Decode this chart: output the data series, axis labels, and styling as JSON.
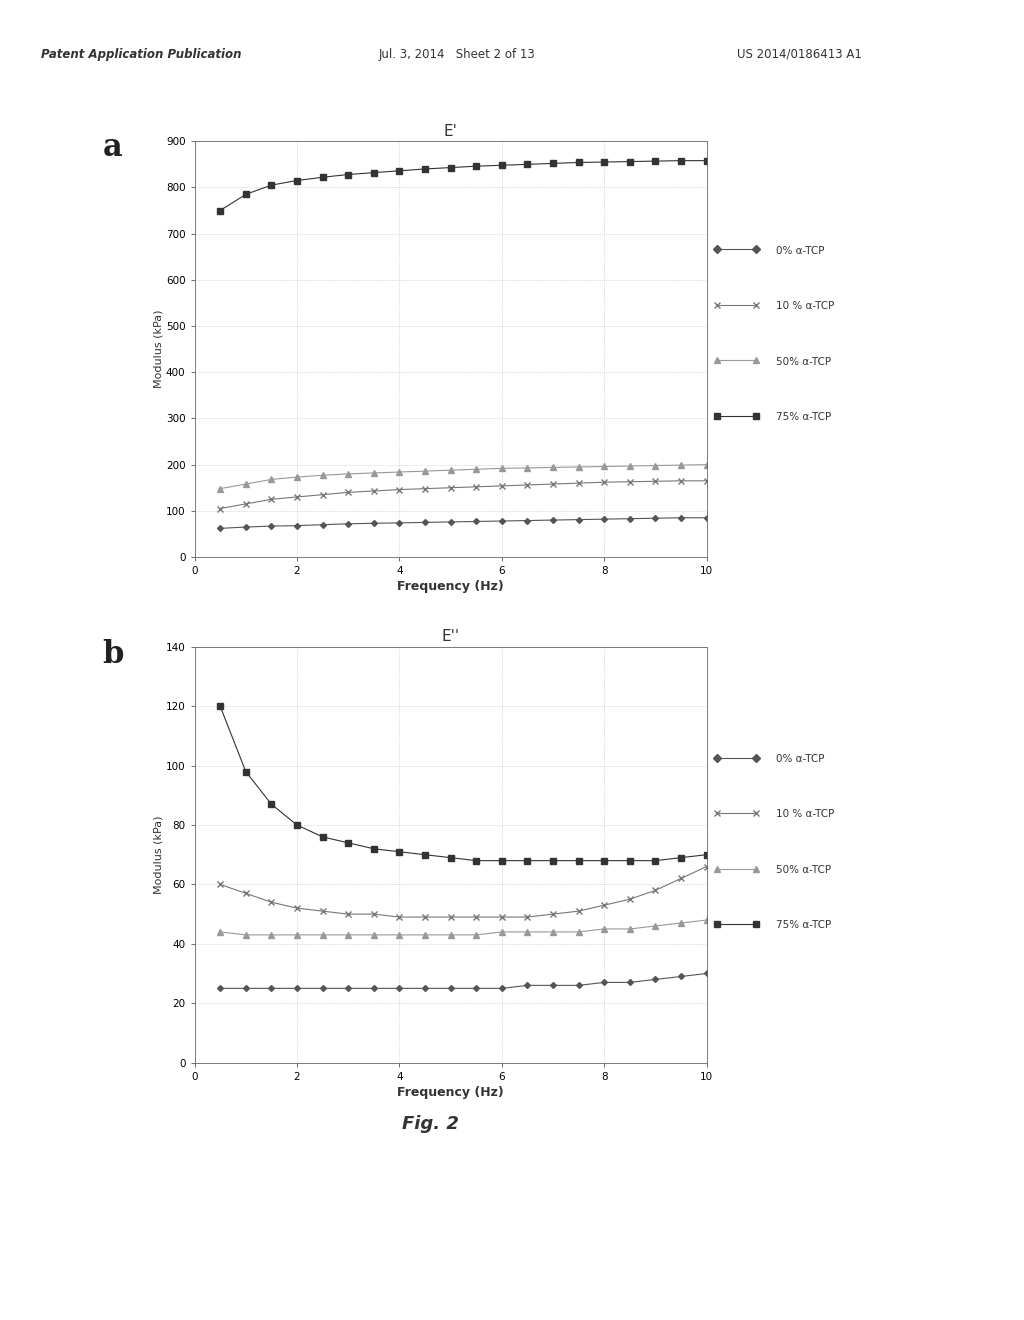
{
  "header_left": "Patent Application Publication",
  "header_mid": "Jul. 3, 2014   Sheet 2 of 13",
  "header_right": "US 2014/0186413 A1",
  "fig_label": "Fig. 2",
  "plot_a": {
    "label": "a",
    "title": "E'",
    "xlabel": "Frequency (Hz)",
    "ylabel": "Modulus (kPa)",
    "xlim": [
      0,
      10
    ],
    "ylim": [
      0,
      900
    ],
    "yticks": [
      0,
      100,
      200,
      300,
      400,
      500,
      600,
      700,
      800,
      900
    ],
    "xticks": [
      0,
      2,
      4,
      6,
      8,
      10
    ],
    "series": [
      {
        "label": "0% α-TCP",
        "x": [
          0.5,
          1,
          1.5,
          2,
          2.5,
          3,
          3.5,
          4,
          4.5,
          5,
          5.5,
          6,
          6.5,
          7,
          7.5,
          8,
          8.5,
          9,
          9.5,
          10
        ],
        "y": [
          62,
          65,
          67,
          68,
          70,
          72,
          73,
          74,
          75,
          76,
          77,
          78,
          79,
          80,
          81,
          82,
          83,
          84,
          85,
          85
        ]
      },
      {
        "label": "10 % α-TCP",
        "x": [
          0.5,
          1,
          1.5,
          2,
          2.5,
          3,
          3.5,
          4,
          4.5,
          5,
          5.5,
          6,
          6.5,
          7,
          7.5,
          8,
          8.5,
          9,
          9.5,
          10
        ],
        "y": [
          105,
          115,
          125,
          130,
          135,
          140,
          143,
          146,
          148,
          150,
          152,
          154,
          156,
          158,
          160,
          162,
          163,
          164,
          165,
          165
        ]
      },
      {
        "label": "50% α-TCP",
        "x": [
          0.5,
          1,
          1.5,
          2,
          2.5,
          3,
          3.5,
          4,
          4.5,
          5,
          5.5,
          6,
          6.5,
          7,
          7.5,
          8,
          8.5,
          9,
          9.5,
          10
        ],
        "y": [
          148,
          158,
          168,
          173,
          177,
          180,
          182,
          184,
          186,
          188,
          190,
          192,
          193,
          194,
          195,
          196,
          197,
          198,
          199,
          200
        ]
      },
      {
        "label": "75% α-TCP",
        "x": [
          0.5,
          1,
          1.5,
          2,
          2.5,
          3,
          3.5,
          4,
          4.5,
          5,
          5.5,
          6,
          6.5,
          7,
          7.5,
          8,
          8.5,
          9,
          9.5,
          10
        ],
        "y": [
          750,
          785,
          805,
          815,
          822,
          828,
          832,
          836,
          840,
          843,
          846,
          848,
          850,
          852,
          854,
          855,
          856,
          857,
          858,
          858
        ]
      }
    ]
  },
  "plot_b": {
    "label": "b",
    "title": "E''",
    "xlabel": "Frequency (Hz)",
    "ylabel": "Modulus (kPa)",
    "xlim": [
      0,
      10
    ],
    "ylim": [
      0,
      140
    ],
    "yticks": [
      0,
      20,
      40,
      60,
      80,
      100,
      120,
      140
    ],
    "xticks": [
      0,
      2,
      4,
      6,
      8,
      10
    ],
    "series": [
      {
        "label": "0% α-TCP",
        "x": [
          0.5,
          1,
          1.5,
          2,
          2.5,
          3,
          3.5,
          4,
          4.5,
          5,
          5.5,
          6,
          6.5,
          7,
          7.5,
          8,
          8.5,
          9,
          9.5,
          10
        ],
        "y": [
          25,
          25,
          25,
          25,
          25,
          25,
          25,
          25,
          25,
          25,
          25,
          25,
          26,
          26,
          26,
          27,
          27,
          28,
          29,
          30
        ]
      },
      {
        "label": "10 % α-TCP",
        "x": [
          0.5,
          1,
          1.5,
          2,
          2.5,
          3,
          3.5,
          4,
          4.5,
          5,
          5.5,
          6,
          6.5,
          7,
          7.5,
          8,
          8.5,
          9,
          9.5,
          10
        ],
        "y": [
          60,
          57,
          54,
          52,
          51,
          50,
          50,
          49,
          49,
          49,
          49,
          49,
          49,
          50,
          51,
          53,
          55,
          58,
          62,
          66
        ]
      },
      {
        "label": "50% α-TCP",
        "x": [
          0.5,
          1,
          1.5,
          2,
          2.5,
          3,
          3.5,
          4,
          4.5,
          5,
          5.5,
          6,
          6.5,
          7,
          7.5,
          8,
          8.5,
          9,
          9.5,
          10
        ],
        "y": [
          44,
          43,
          43,
          43,
          43,
          43,
          43,
          43,
          43,
          43,
          43,
          44,
          44,
          44,
          44,
          45,
          45,
          46,
          47,
          48
        ]
      },
      {
        "label": "75% α-TCP",
        "x": [
          0.5,
          1,
          1.5,
          2,
          2.5,
          3,
          3.5,
          4,
          4.5,
          5,
          5.5,
          6,
          6.5,
          7,
          7.5,
          8,
          8.5,
          9,
          9.5,
          10
        ],
        "y": [
          120,
          98,
          87,
          80,
          76,
          74,
          72,
          71,
          70,
          69,
          68,
          68,
          68,
          68,
          68,
          68,
          68,
          68,
          69,
          70
        ]
      }
    ]
  },
  "markers": [
    "D",
    "x",
    "^",
    "s"
  ],
  "colors": [
    "#555555",
    "#777777",
    "#999999",
    "#333333"
  ],
  "markersizes": [
    3,
    4,
    4,
    4
  ],
  "linewidth": 0.8,
  "background_color": "#ffffff",
  "grid_color": "#bbbbbb",
  "grid_linestyle": ":",
  "grid_linewidth": 0.5
}
